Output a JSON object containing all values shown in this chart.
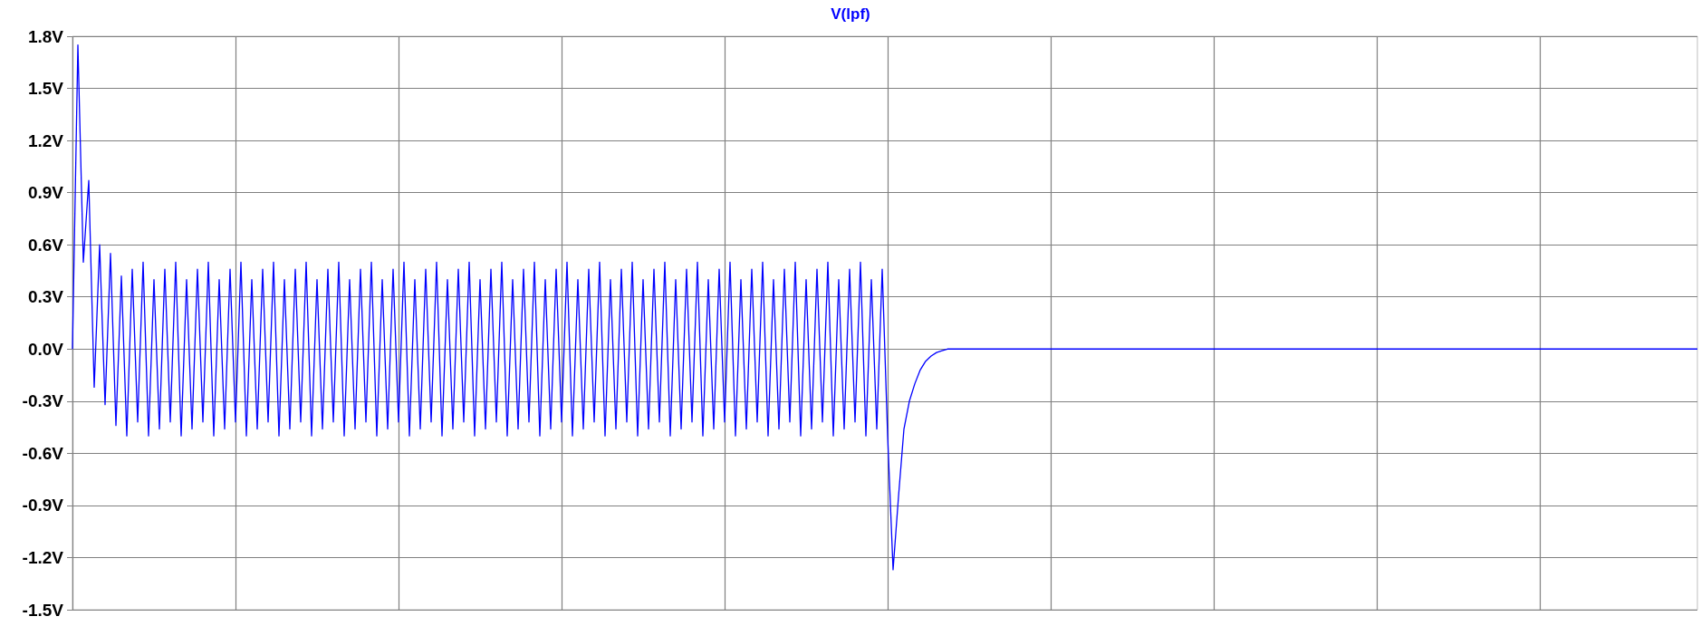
{
  "chart_data": {
    "type": "line",
    "title": "V(lpf)",
    "categories": [
      null,
      null,
      null,
      null,
      null,
      null,
      null,
      null,
      null,
      null,
      null,
      null,
      null,
      null,
      null,
      null,
      null,
      null,
      null,
      null,
      null,
      null,
      null,
      null,
      null,
      null,
      null,
      null,
      null,
      null,
      null,
      null,
      null,
      null,
      null,
      null,
      null,
      null,
      null,
      null,
      null,
      null,
      null,
      null,
      null,
      null,
      null,
      null,
      null,
      null,
      null,
      null,
      null,
      null,
      null,
      null,
      null,
      null,
      null,
      null,
      null,
      null,
      null,
      null,
      null,
      null,
      null,
      null,
      null,
      null,
      null,
      null,
      null,
      null,
      null,
      null,
      null,
      null,
      null,
      null,
      null,
      null,
      null,
      null,
      null,
      null,
      null,
      null,
      null,
      null,
      null,
      null,
      null,
      null,
      null,
      null,
      null,
      null,
      null,
      null,
      null,
      null,
      null,
      null,
      null,
      null,
      null,
      null,
      null,
      null,
      null,
      null,
      null,
      null,
      null,
      null,
      null,
      null,
      null,
      null,
      null,
      null,
      null,
      null,
      null,
      null,
      null,
      null,
      null,
      null,
      null,
      null,
      null,
      null,
      null,
      null,
      null,
      null,
      null,
      null,
      null,
      null,
      null,
      null,
      null,
      null,
      null,
      null,
      null,
      null,
      null,
      null,
      null,
      null,
      null,
      null,
      null,
      null,
      null,
      null,
      null,
      null,
      null,
      null,
      null,
      null,
      null,
      null,
      null,
      null,
      null,
      null,
      null,
      null,
      null,
      null,
      null,
      null,
      null,
      null,
      null,
      null,
      null,
      null,
      null,
      null,
      null,
      null,
      null,
      null,
      null,
      null,
      null,
      null,
      null,
      null,
      null,
      null,
      null,
      null,
      null,
      null,
      null,
      null,
      null,
      null,
      null,
      null,
      null,
      null,
      null,
      null,
      null,
      null,
      null,
      null,
      null,
      null,
      null,
      null,
      null,
      null,
      null,
      null,
      null,
      null,
      null,
      null,
      null,
      null,
      null,
      null,
      null,
      null,
      null,
      null,
      null,
      null,
      null,
      null,
      null,
      null,
      null,
      null,
      null,
      null,
      null,
      null,
      null,
      null,
      null,
      null,
      null,
      null,
      null,
      null,
      null,
      null,
      null,
      null,
      null,
      null,
      null,
      null,
      null,
      null,
      null,
      null,
      null,
      null,
      null,
      null,
      null,
      null,
      null,
      null,
      null,
      null,
      null,
      null,
      null,
      null,
      null,
      null,
      null,
      null,
      null,
      null,
      null,
      null,
      null,
      null,
      null,
      null,
      null,
      null,
      null,
      null,
      null,
      null
    ],
    "series": [
      {
        "color": "#0000ff",
        "values": [
          0.0,
          1.75,
          0.5,
          0.97,
          -0.22,
          0.6,
          -0.32,
          0.55,
          -0.44,
          0.42,
          -0.5,
          0.46,
          -0.42,
          0.5,
          -0.5,
          0.4,
          -0.46,
          0.46,
          -0.42,
          0.5,
          -0.5,
          0.4,
          -0.46,
          0.46,
          -0.42,
          0.5,
          -0.5,
          0.4,
          -0.46,
          0.46,
          -0.42,
          0.5,
          -0.5,
          0.4,
          -0.46,
          0.46,
          -0.42,
          0.5,
          -0.5,
          0.4,
          -0.46,
          0.46,
          -0.42,
          0.5,
          -0.5,
          0.4,
          -0.46,
          0.46,
          -0.42,
          0.5,
          -0.5,
          0.4,
          -0.46,
          0.46,
          -0.42,
          0.5,
          -0.5,
          0.4,
          -0.46,
          0.46,
          -0.42,
          0.5,
          -0.5,
          0.4,
          -0.46,
          0.46,
          -0.42,
          0.5,
          -0.5,
          0.4,
          -0.46,
          0.46,
          -0.42,
          0.5,
          -0.5,
          0.4,
          -0.46,
          0.46,
          -0.42,
          0.5,
          -0.5,
          0.4,
          -0.46,
          0.46,
          -0.42,
          0.5,
          -0.5,
          0.4,
          -0.46,
          0.46,
          -0.42,
          0.5,
          -0.5,
          0.4,
          -0.46,
          0.46,
          -0.42,
          0.5,
          -0.5,
          0.4,
          -0.46,
          0.46,
          -0.42,
          0.5,
          -0.5,
          0.4,
          -0.46,
          0.46,
          -0.42,
          0.5,
          -0.5,
          0.4,
          -0.46,
          0.46,
          -0.42,
          0.5,
          -0.5,
          0.4,
          -0.46,
          0.46,
          -0.42,
          0.5,
          -0.5,
          0.4,
          -0.46,
          0.46,
          -0.42,
          0.5,
          -0.5,
          0.4,
          -0.46,
          0.46,
          -0.42,
          0.5,
          -0.5,
          0.4,
          -0.46,
          0.46,
          -0.42,
          0.5,
          -0.5,
          0.4,
          -0.46,
          0.46,
          -0.42,
          0.5,
          -0.5,
          0.4,
          -0.46,
          0.46,
          -0.5,
          -1.27,
          -0.85,
          -0.46,
          -0.3,
          -0.2,
          -0.12,
          -0.07,
          -0.04,
          -0.02,
          -0.01,
          0,
          0,
          0,
          0,
          0,
          0,
          0,
          0,
          0,
          0,
          0,
          0,
          0,
          0,
          0,
          0,
          0,
          0,
          0,
          0,
          0,
          0,
          0,
          0,
          0,
          0,
          0,
          0,
          0,
          0,
          0,
          0,
          0,
          0,
          0,
          0,
          0,
          0,
          0,
          0,
          0,
          0,
          0,
          0,
          0,
          0,
          0,
          0,
          0,
          0,
          0,
          0,
          0,
          0,
          0,
          0,
          0,
          0,
          0,
          0,
          0,
          0,
          0,
          0,
          0,
          0,
          0,
          0,
          0,
          0,
          0,
          0,
          0,
          0,
          0,
          0,
          0,
          0,
          0,
          0,
          0,
          0,
          0,
          0,
          0,
          0,
          0,
          0,
          0,
          0,
          0,
          0,
          0,
          0,
          0,
          0,
          0,
          0,
          0,
          0,
          0,
          0,
          0,
          0,
          0,
          0,
          0,
          0,
          0,
          0,
          0,
          0,
          0,
          0,
          0,
          0,
          0,
          0,
          0,
          0,
          0,
          0,
          0,
          0,
          0,
          0,
          0,
          0,
          0,
          0,
          0,
          0,
          0,
          0,
          0,
          0,
          0,
          0,
          0
        ]
      }
    ],
    "ylim": [
      -1.5,
      1.8
    ],
    "yticks": [
      {
        "value": 1.8,
        "label": "1.8V"
      },
      {
        "value": 1.5,
        "label": "1.5V"
      },
      {
        "value": 1.2,
        "label": "1.2V"
      },
      {
        "value": 0.9,
        "label": "0.9V"
      },
      {
        "value": 0.6,
        "label": "0.6V"
      },
      {
        "value": 0.3,
        "label": "0.3V"
      },
      {
        "value": 0.0,
        "label": "0.0V"
      },
      {
        "value": -0.3,
        "label": "-0.3V"
      },
      {
        "value": -0.6,
        "label": "-0.6V"
      },
      {
        "value": -0.9,
        "label": "-0.9V"
      },
      {
        "value": -1.2,
        "label": "-1.2V"
      },
      {
        "value": -1.5,
        "label": "-1.5V"
      }
    ],
    "grid": true,
    "tick_labels": "y",
    "line_style": "solid"
  }
}
